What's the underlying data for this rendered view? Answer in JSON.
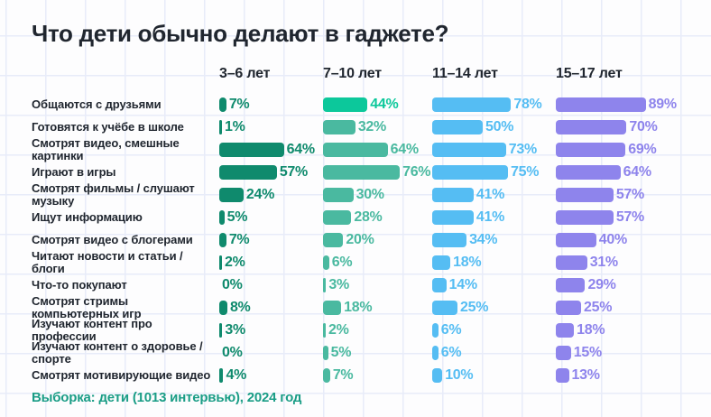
{
  "title": "Что дети обычно делают в гаджете?",
  "footnote": "Выборка: дети (1013 интервью), 2024 год",
  "colors": {
    "background": "#fdfdfe",
    "grid_line": "#e8ecf9",
    "title_text": "#20262f",
    "label_text": "#20262f",
    "footnote_text": "#1a9d86",
    "series": [
      "#0f8a6d",
      "#4ab9a0",
      "#55bdf3",
      "#8e84ec"
    ],
    "highlight": "#0cc89b"
  },
  "chart_data": {
    "type": "bar",
    "orientation": "horizontal",
    "value_suffix": "%",
    "xlim": [
      0,
      100
    ],
    "title": "Что дети обычно делают в гаджете?",
    "categories": [
      "Общаются с друзьями",
      "Готовятся к учёбе в школе",
      "Смотрят видео, смешные картинки",
      "Играют в игры",
      "Смотрят фильмы / слушают музыку",
      "Ищут информацию",
      "Смотрят видео с блогерами",
      "Читают новости и статьи / блоги",
      "Что-то покупают",
      "Смотрят стримы компьютерных игр",
      "Изучают контент про профессии",
      "Изучают контент о здоровье / спорте",
      "Смотрят мотивирующие видео"
    ],
    "series": [
      {
        "name": "3–6 лет",
        "color": "#0f8a6d",
        "values": [
          7,
          1,
          64,
          57,
          24,
          5,
          7,
          2,
          0,
          8,
          3,
          0,
          4
        ]
      },
      {
        "name": "7–10 лет",
        "color": "#4ab9a0",
        "values": [
          44,
          32,
          64,
          76,
          30,
          28,
          20,
          6,
          3,
          18,
          2,
          5,
          7
        ]
      },
      {
        "name": "11–14 лет",
        "color": "#55bdf3",
        "values": [
          78,
          50,
          73,
          75,
          41,
          41,
          34,
          18,
          14,
          25,
          6,
          6,
          10
        ]
      },
      {
        "name": "15–17 лет",
        "color": "#8e84ec",
        "values": [
          89,
          70,
          69,
          64,
          57,
          57,
          40,
          31,
          29,
          25,
          18,
          15,
          13
        ]
      }
    ],
    "highlight_cell": {
      "series": 1,
      "row": 0,
      "color": "#0cc89b"
    },
    "legend_position": "top",
    "grid": "background-graph-paper"
  }
}
